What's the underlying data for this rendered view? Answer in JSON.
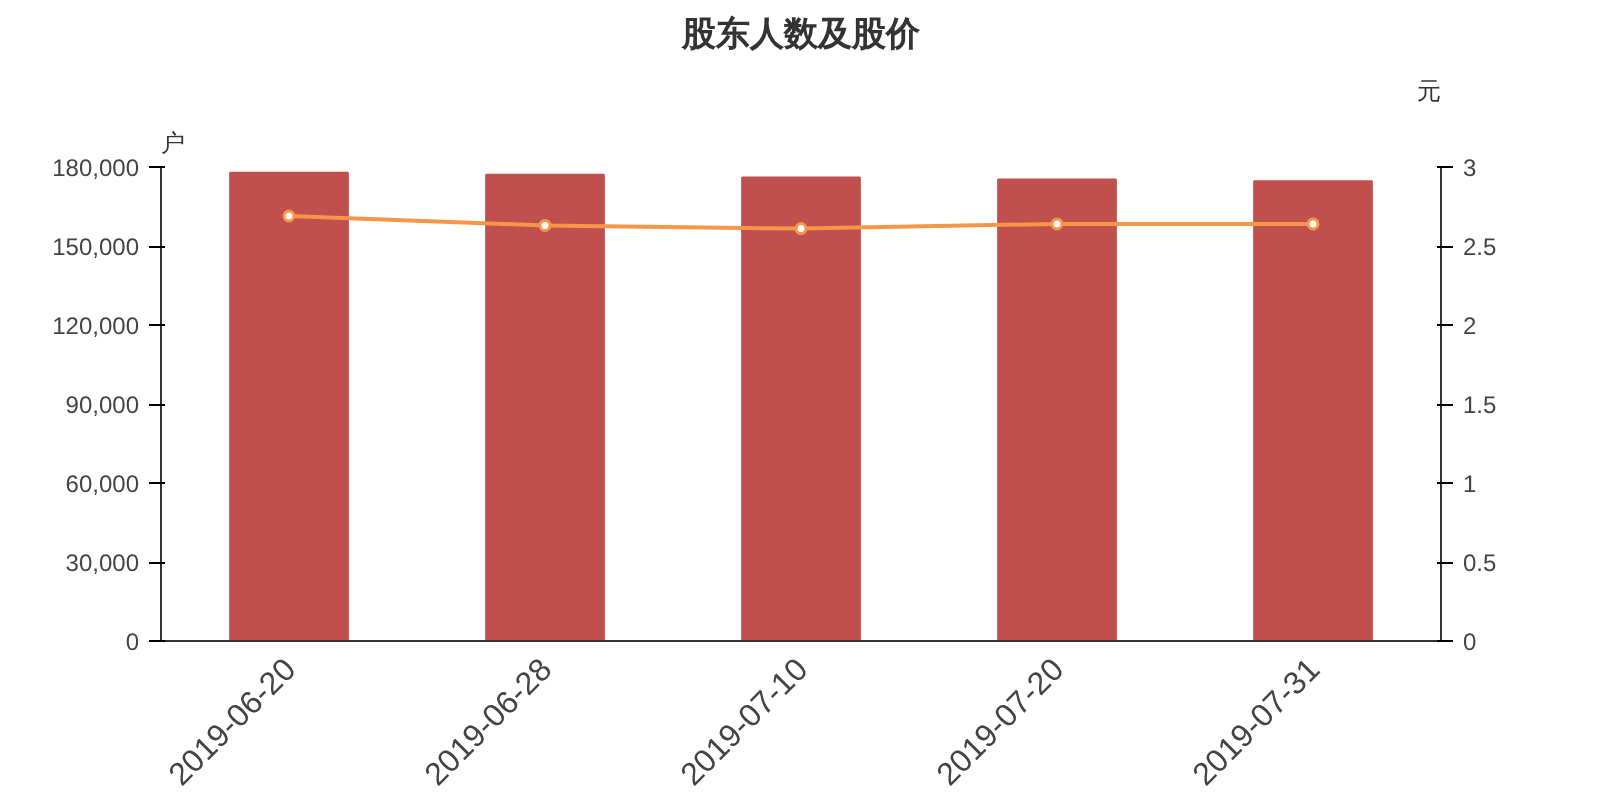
{
  "chart_data": {
    "type": "bar",
    "title": "股东人数及股价",
    "ylabel": "户",
    "y2label": "元",
    "categories": [
      "2019-06-20",
      "2019-06-28",
      "2019-07-10",
      "2019-07-20",
      "2019-07-31"
    ],
    "series": [
      {
        "color": "#c0504d",
        "values": [
          177800,
          177100,
          176000,
          175300,
          174600
        ]
      },
      {
        "type": "line",
        "axis": "y2",
        "color": "#f79646",
        "marker": "circle",
        "values": [
          2.69,
          2.63,
          2.61,
          2.64,
          2.64
        ]
      }
    ],
    "ylim": [
      0,
      180000
    ],
    "yticks": [
      0,
      {
        "value": 30000,
        "label": "30,000"
      },
      {
        "value": 60000,
        "label": "60,000"
      },
      {
        "value": 90000,
        "label": "90,000"
      },
      {
        "value": 120000,
        "label": "120,000"
      },
      {
        "value": 150000,
        "label": "150,000"
      },
      {
        "value": 180000,
        "label": "180,000"
      }
    ],
    "y2lim": [
      0,
      3
    ],
    "y2ticks": [
      0,
      0.5,
      1,
      1.5,
      2,
      2.5,
      3
    ],
    "grid": false
  }
}
